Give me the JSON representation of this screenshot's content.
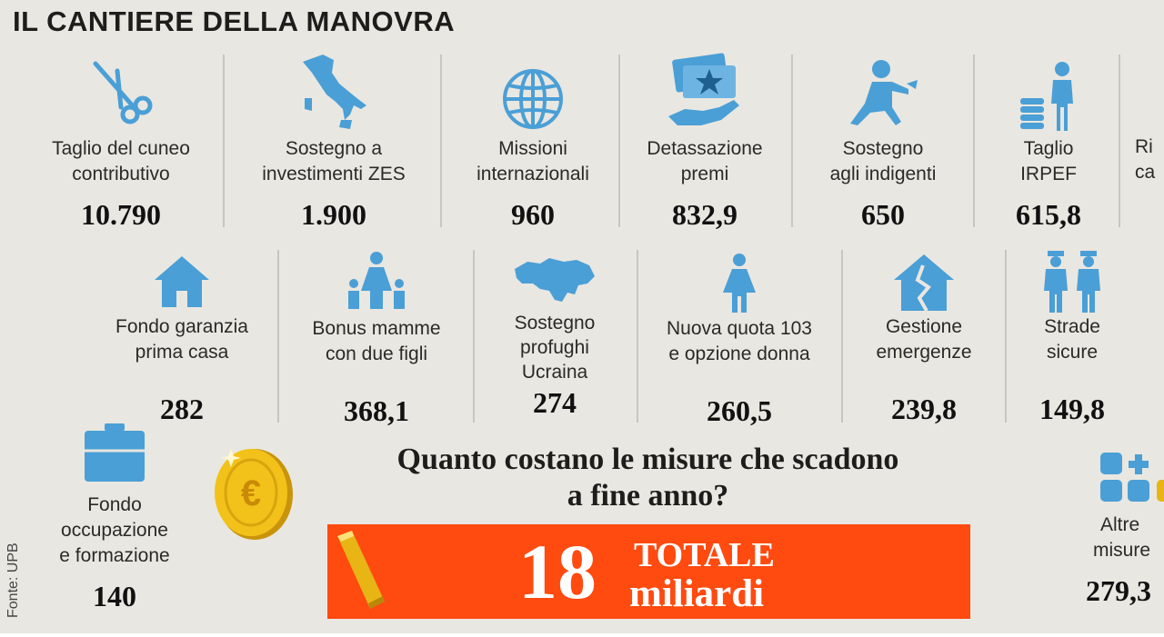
{
  "title": "IL CANTIERE DELLA MANOVRA",
  "accent": "#4a9fd6",
  "total_bar_color": "#ff4a10",
  "row1": [
    {
      "label1": "Taglio del cuneo",
      "label2": "contributivo",
      "value": "10.790",
      "icon": "scissors-icon"
    },
    {
      "label1": "Sostegno a",
      "label2": "investimenti ZES",
      "value": "1.900",
      "icon": "italy-map-icon"
    },
    {
      "label1": "Missioni",
      "label2": "internazionali",
      "value": "960",
      "icon": "globe-icon"
    },
    {
      "label1": "Detassazione",
      "label2": "premi",
      "value": "832,9",
      "icon": "bonus-hand-icon"
    },
    {
      "label1": "Sostegno",
      "label2": "agli indigenti",
      "value": "650",
      "icon": "kneeling-person-icon"
    },
    {
      "label1": "Taglio",
      "label2": "IRPEF",
      "value": "615,8",
      "icon": "coins-person-icon"
    },
    {
      "label1": "Ri",
      "label2": "ca",
      "value": "",
      "icon": ""
    }
  ],
  "row2": [
    {
      "label1": "Fondo garanzia",
      "label2": "prima casa",
      "label3": "",
      "value": "282",
      "icon": "house-icon"
    },
    {
      "label1": "Bonus mamme",
      "label2": "con due figli",
      "label3": "",
      "value": "368,1",
      "icon": "family-icon"
    },
    {
      "label1": "Sostegno",
      "label2": "profughi",
      "label3": "Ucraina",
      "value": "274",
      "icon": "ukraine-map-icon"
    },
    {
      "label1": "Nuova quota 103",
      "label2": "e opzione donna",
      "label3": "",
      "value": "260,5",
      "icon": "woman-icon"
    },
    {
      "label1": "Gestione",
      "label2": "emergenze",
      "label3": "",
      "value": "239,8",
      "icon": "cracked-house-icon"
    },
    {
      "label1": "Strade",
      "label2": "sicure",
      "label3": "",
      "value": "149,8",
      "icon": "police-icon"
    }
  ],
  "row3_left": {
    "label1": "Fondo",
    "label2": "occupazione",
    "label3": "e formazione",
    "value": "140",
    "icon": "briefcase-icon"
  },
  "row3_right": {
    "label1": "Altre",
    "label2": "misure",
    "value": "279,3",
    "icon": "grid-plus-icon"
  },
  "question_line1": "Quanto costano le misure che scadono",
  "question_line2": "a fine anno?",
  "total_number": "18",
  "total_word1": "TOTALE",
  "total_word2": "miliardi",
  "source": "Fonte: UPB"
}
